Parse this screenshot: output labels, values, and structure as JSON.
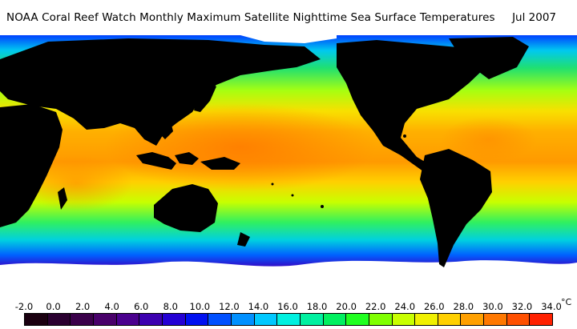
{
  "header": {
    "title": "NOAA Coral Reef Watch Monthly Maximum Satellite Nighttime Sea Surface Temperatures",
    "date": "Jul 2007"
  },
  "legend": {
    "ticks": [
      "-2.0",
      "0.0",
      "2.0",
      "4.0",
      "6.0",
      "8.0",
      "10.0",
      "12.0",
      "14.0",
      "16.0",
      "18.0",
      "20.0",
      "22.0",
      "24.0",
      "26.0",
      "28.0",
      "30.0",
      "32.0",
      "34.0"
    ],
    "unit": "°C",
    "colors": [
      "#1a0010",
      "#2a0030",
      "#3a004a",
      "#48006a",
      "#4a008e",
      "#3c00b0",
      "#2400d4",
      "#0010f0",
      "#0050ff",
      "#0090ff",
      "#00c8ff",
      "#00f0e0",
      "#00f0a0",
      "#00f060",
      "#20ff20",
      "#80ff00",
      "#c8ff00",
      "#f0f000",
      "#ffd000",
      "#ffa000",
      "#ff7800",
      "#ff5000",
      "#ff2000"
    ]
  },
  "map_colors": {
    "land": "#000000",
    "ice": "#ffffff",
    "tropical_warm": "#ff8c00",
    "tropical": "#ffd000",
    "subtropical": "#a8ff10",
    "temperate": "#20e070",
    "cool": "#00c8e0",
    "cold": "#0060ff",
    "polar": "#4400aa",
    "frozen": "#300058"
  }
}
